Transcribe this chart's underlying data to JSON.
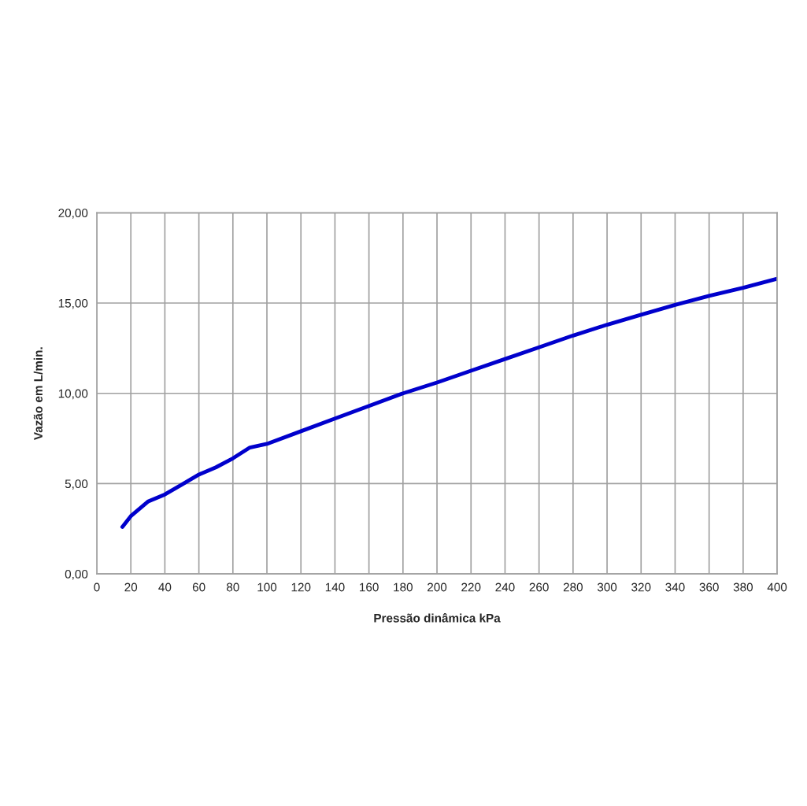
{
  "chart_data": {
    "type": "line",
    "xlabel": "Pressão dinâmica kPa",
    "ylabel": "Vazão em L/min.",
    "x": [
      15,
      20,
      30,
      40,
      50,
      60,
      70,
      80,
      90,
      100,
      120,
      140,
      160,
      180,
      200,
      220,
      240,
      260,
      280,
      300,
      320,
      340,
      360,
      380,
      400
    ],
    "series": [
      {
        "color": "#0000cc",
        "values": [
          2.6,
          3.2,
          4.0,
          4.4,
          4.95,
          5.5,
          5.9,
          6.4,
          7.0,
          7.2,
          7.9,
          8.6,
          9.3,
          10.0,
          10.6,
          11.25,
          11.9,
          12.55,
          13.2,
          13.8,
          14.35,
          14.9,
          15.4,
          15.85,
          16.35
        ]
      }
    ],
    "xlim": [
      0,
      400
    ],
    "xticks": [
      0,
      20,
      40,
      60,
      80,
      100,
      120,
      140,
      160,
      180,
      200,
      220,
      240,
      260,
      280,
      300,
      320,
      340,
      360,
      380,
      400
    ],
    "ylim": [
      0,
      20
    ],
    "yticks": [
      {
        "value": 0,
        "label": "0,00"
      },
      {
        "value": 5,
        "label": "5,00"
      },
      {
        "value": 10,
        "label": "10,00"
      },
      {
        "value": 15,
        "label": "15,00"
      },
      {
        "value": 20,
        "label": "20,00"
      }
    ],
    "grid": true,
    "marker": "none",
    "line_style": "solid"
  }
}
